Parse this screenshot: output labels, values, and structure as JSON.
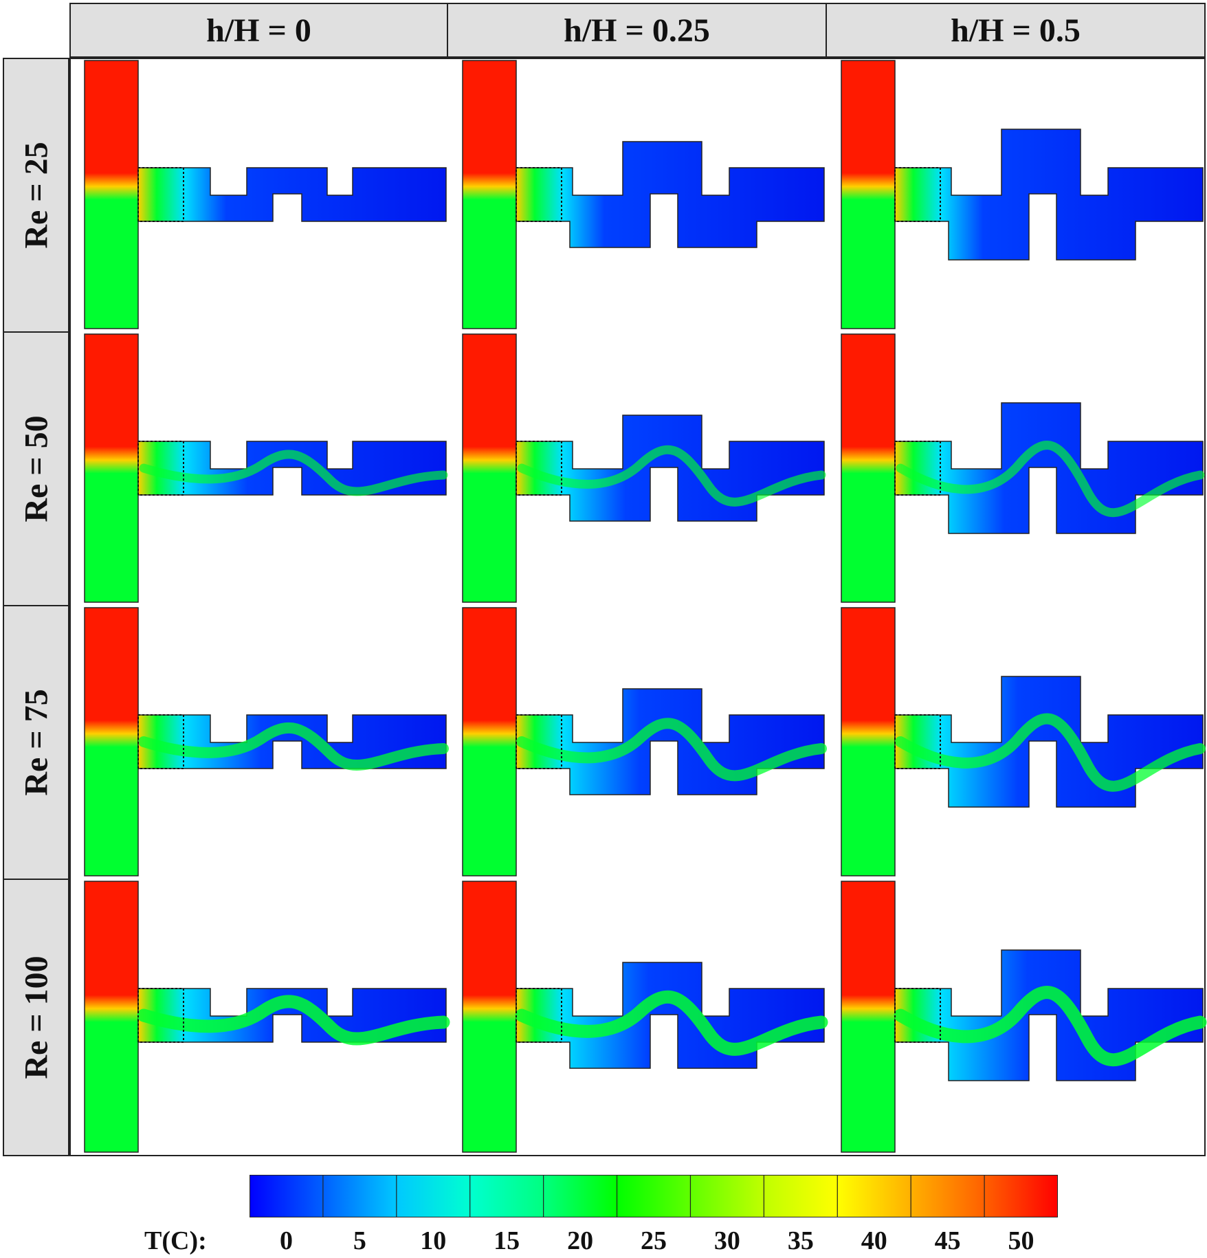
{
  "columns": [
    "h/H = 0",
    "h/H = 0.25",
    "h/H = 0.5"
  ],
  "rows": [
    "Re = 25",
    "Re = 50",
    "Re = 75",
    "Re = 100"
  ],
  "colorbar": {
    "title": "T(C):",
    "ticks": [
      "0",
      "5",
      "10",
      "15",
      "20",
      "25",
      "30",
      "35",
      "40",
      "45",
      "50"
    ],
    "range": [
      0,
      55
    ],
    "colors": [
      "#0000ff",
      "#0060ff",
      "#00c8ff",
      "#00ffd0",
      "#00ff80",
      "#00ff00",
      "#60ff00",
      "#c0ff00",
      "#ffff00",
      "#ffb000",
      "#ff6000",
      "#ff0000"
    ]
  },
  "fluid_colors": {
    "hot": "#ff1a00",
    "warm": "#ffd000",
    "mid": "#00ff30",
    "cool": "#00e0ff",
    "cold": "#0040ff",
    "coldest": "#0018f0"
  }
}
